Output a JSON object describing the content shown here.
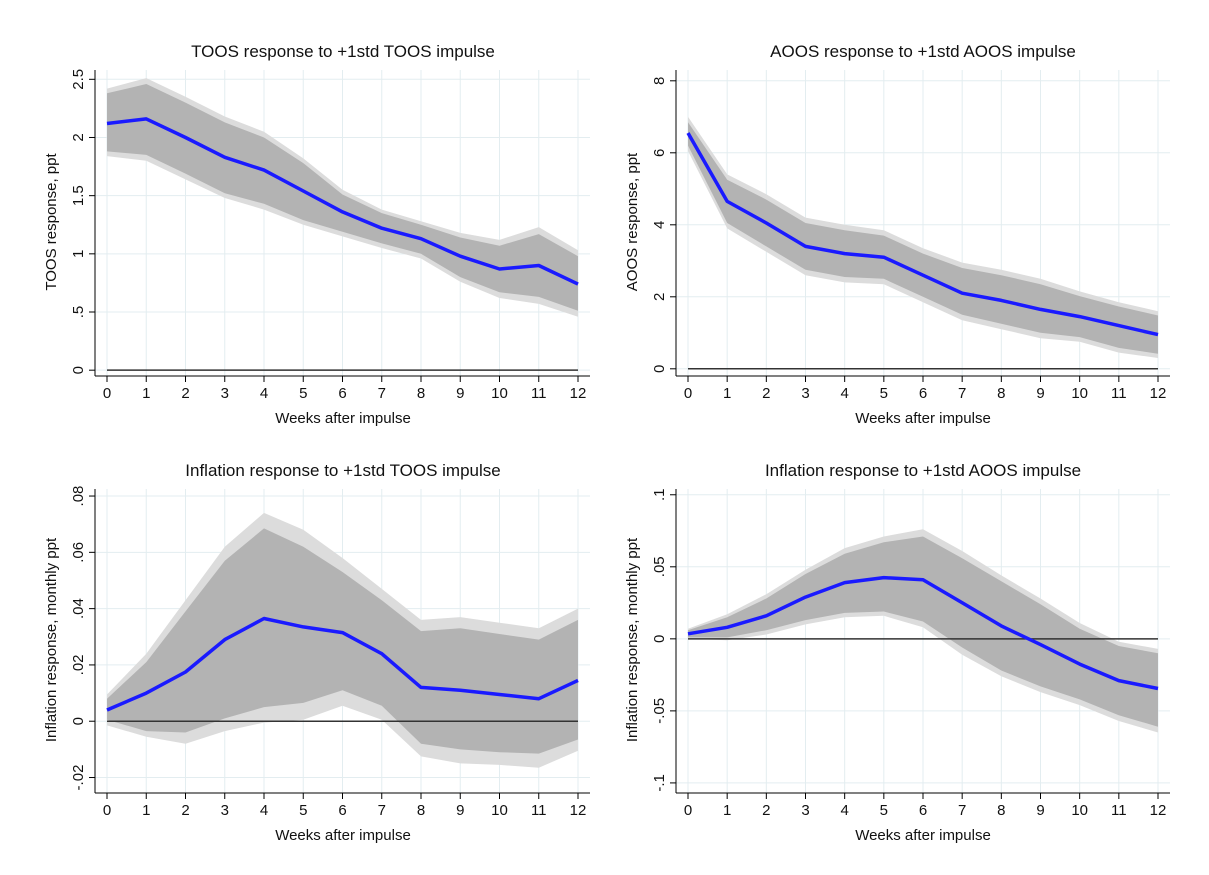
{
  "colors": {
    "estimate": "#1a1aff",
    "band_inner": "#b3b3b3",
    "band_outer": "#dcdcdc",
    "grid": "#e3edf0",
    "zero_line": "#333333"
  },
  "chart_data": [
    {
      "type": "line",
      "title": "TOOS response to +1std TOOS impulse",
      "xlabel": "Weeks after impulse",
      "ylabel": "TOOS response, ppt",
      "x": [
        0,
        1,
        2,
        3,
        4,
        5,
        6,
        7,
        8,
        9,
        10,
        11,
        12
      ],
      "xticks": [
        "0",
        "1",
        "2",
        "3",
        "4",
        "5",
        "6",
        "7",
        "8",
        "9",
        "10",
        "11",
        "12"
      ],
      "yticks": [
        0,
        0.5,
        1,
        1.5,
        2,
        2.5
      ],
      "ytick_labels": [
        "0",
        ".5",
        "1",
        "1.5",
        "2",
        "2.5"
      ],
      "ylim": [
        -0.05,
        2.58
      ],
      "reference_line": 0,
      "grid": true,
      "series": [
        {
          "role": "estimate",
          "values": [
            2.12,
            2.16,
            2.0,
            1.83,
            1.72,
            1.54,
            1.36,
            1.22,
            1.13,
            0.98,
            0.87,
            0.9,
            0.74
          ]
        },
        {
          "role": "band_outer_upper",
          "values": [
            2.42,
            2.51,
            2.35,
            2.18,
            2.05,
            1.82,
            1.55,
            1.38,
            1.28,
            1.18,
            1.12,
            1.23,
            1.03
          ]
        },
        {
          "role": "band_outer_lower",
          "values": [
            1.84,
            1.8,
            1.64,
            1.48,
            1.38,
            1.25,
            1.15,
            1.05,
            0.96,
            0.76,
            0.62,
            0.57,
            0.46
          ]
        },
        {
          "role": "band_inner_upper",
          "values": [
            2.38,
            2.46,
            2.3,
            2.13,
            2.0,
            1.78,
            1.51,
            1.35,
            1.25,
            1.14,
            1.07,
            1.17,
            0.98
          ]
        },
        {
          "role": "band_inner_lower",
          "values": [
            1.88,
            1.85,
            1.69,
            1.52,
            1.43,
            1.29,
            1.19,
            1.09,
            1.0,
            0.8,
            0.67,
            0.63,
            0.51
          ]
        }
      ]
    },
    {
      "type": "line",
      "title": "AOOS response to +1std AOOS impulse",
      "xlabel": "Weeks after impulse",
      "ylabel": "AOOS response, ppt",
      "x": [
        0,
        1,
        2,
        3,
        4,
        5,
        6,
        7,
        8,
        9,
        10,
        11,
        12
      ],
      "xticks": [
        "0",
        "1",
        "2",
        "3",
        "4",
        "5",
        "6",
        "7",
        "8",
        "9",
        "10",
        "11",
        "12"
      ],
      "yticks": [
        0,
        2,
        4,
        6,
        8
      ],
      "ytick_labels": [
        "0",
        "2",
        "4",
        "6",
        "8"
      ],
      "ylim": [
        -0.2,
        8.3
      ],
      "reference_line": 0,
      "grid": true,
      "series": [
        {
          "role": "estimate",
          "values": [
            6.55,
            4.65,
            4.05,
            3.4,
            3.2,
            3.1,
            2.6,
            2.1,
            1.9,
            1.65,
            1.45,
            1.2,
            0.95
          ]
        },
        {
          "role": "band_outer_upper",
          "values": [
            7.0,
            5.4,
            4.85,
            4.2,
            4.0,
            3.85,
            3.35,
            2.95,
            2.75,
            2.5,
            2.15,
            1.85,
            1.6
          ]
        },
        {
          "role": "band_outer_lower",
          "values": [
            6.05,
            3.9,
            3.25,
            2.6,
            2.4,
            2.35,
            1.85,
            1.35,
            1.1,
            0.85,
            0.75,
            0.45,
            0.3
          ]
        },
        {
          "role": "band_inner_upper",
          "values": [
            6.85,
            5.25,
            4.7,
            4.05,
            3.85,
            3.7,
            3.2,
            2.8,
            2.6,
            2.35,
            2.02,
            1.73,
            1.48
          ]
        },
        {
          "role": "band_inner_lower",
          "values": [
            6.2,
            4.05,
            3.4,
            2.75,
            2.55,
            2.5,
            2.0,
            1.5,
            1.25,
            1.0,
            0.88,
            0.58,
            0.42
          ]
        }
      ]
    },
    {
      "type": "line",
      "title": "Inflation response to +1std TOOS impulse",
      "xlabel": "Weeks after impulse",
      "ylabel": "Inflation response, monthly ppt",
      "x": [
        0,
        1,
        2,
        3,
        4,
        5,
        6,
        7,
        8,
        9,
        10,
        11,
        12
      ],
      "xticks": [
        "0",
        "1",
        "2",
        "3",
        "4",
        "5",
        "6",
        "7",
        "8",
        "9",
        "10",
        "11",
        "12"
      ],
      "yticks": [
        -0.02,
        0,
        0.02,
        0.04,
        0.06,
        0.08
      ],
      "ytick_labels": [
        "-.02",
        "0",
        ".02",
        ".04",
        ".06",
        ".08"
      ],
      "ylim": [
        -0.0255,
        0.0825
      ],
      "reference_line": 0,
      "grid": true,
      "series": [
        {
          "role": "estimate",
          "values": [
            0.004,
            0.01,
            0.0175,
            0.029,
            0.0365,
            0.0335,
            0.0315,
            0.024,
            0.012,
            0.011,
            0.0095,
            0.008,
            0.0145
          ]
        },
        {
          "role": "band_outer_upper",
          "values": [
            0.0095,
            0.024,
            0.043,
            0.062,
            0.074,
            0.068,
            0.058,
            0.047,
            0.036,
            0.037,
            0.035,
            0.033,
            0.04
          ]
        },
        {
          "role": "band_outer_lower",
          "values": [
            -0.0015,
            -0.0055,
            -0.008,
            -0.0035,
            -0.0005,
            0.0005,
            0.0055,
            0.0005,
            -0.0125,
            -0.015,
            -0.0155,
            -0.0165,
            -0.0105
          ]
        },
        {
          "role": "band_inner_upper",
          "values": [
            0.008,
            0.021,
            0.039,
            0.057,
            0.0685,
            0.062,
            0.053,
            0.043,
            0.032,
            0.033,
            0.031,
            0.029,
            0.036
          ]
        },
        {
          "role": "band_inner_lower",
          "values": [
            0.0005,
            -0.0035,
            -0.004,
            0.001,
            0.005,
            0.0065,
            0.011,
            0.0055,
            -0.008,
            -0.01,
            -0.011,
            -0.0115,
            -0.0065
          ]
        }
      ]
    },
    {
      "type": "line",
      "title": "Inflation response to +1std AOOS impulse",
      "xlabel": "Weeks after impulse",
      "ylabel": "Inflation response, monthly ppt",
      "x": [
        0,
        1,
        2,
        3,
        4,
        5,
        6,
        7,
        8,
        9,
        10,
        11,
        12
      ],
      "xticks": [
        "0",
        "1",
        "2",
        "3",
        "4",
        "5",
        "6",
        "7",
        "8",
        "9",
        "10",
        "11",
        "12"
      ],
      "yticks": [
        -0.1,
        -0.05,
        0,
        0.05,
        0.1
      ],
      "ytick_labels": [
        "-.1",
        "-.05",
        "0",
        ".05",
        ".1"
      ],
      "ylim": [
        -0.107,
        0.104
      ],
      "reference_line": 0,
      "grid": true,
      "series": [
        {
          "role": "estimate",
          "values": [
            0.0035,
            0.008,
            0.016,
            0.029,
            0.039,
            0.0425,
            0.041,
            0.025,
            0.009,
            -0.004,
            -0.0175,
            -0.029,
            -0.0345
          ]
        },
        {
          "role": "band_outer_upper",
          "values": [
            0.007,
            0.017,
            0.031,
            0.048,
            0.063,
            0.071,
            0.076,
            0.061,
            0.044,
            0.028,
            0.011,
            -0.002,
            -0.007
          ]
        },
        {
          "role": "band_outer_lower",
          "values": [
            0.0,
            -0.001,
            0.003,
            0.01,
            0.015,
            0.016,
            0.008,
            -0.011,
            -0.026,
            -0.037,
            -0.046,
            -0.057,
            -0.065
          ]
        },
        {
          "role": "band_inner_upper",
          "values": [
            0.006,
            0.015,
            0.028,
            0.045,
            0.059,
            0.067,
            0.071,
            0.056,
            0.04,
            0.024,
            0.007,
            -0.005,
            -0.01
          ]
        },
        {
          "role": "band_inner_lower",
          "values": [
            0.001,
            0.001,
            0.006,
            0.013,
            0.018,
            0.019,
            0.012,
            -0.006,
            -0.022,
            -0.033,
            -0.042,
            -0.053,
            -0.061
          ]
        }
      ]
    }
  ]
}
